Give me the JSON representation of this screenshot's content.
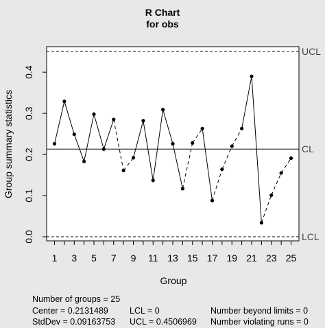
{
  "chart_data": {
    "type": "line",
    "title": "R Chart",
    "subtitle": "for obs",
    "xlabel": "Group",
    "ylabel": "Group summary statistics",
    "xlim": [
      0.2,
      25.8
    ],
    "ylim": [
      -0.01,
      0.462
    ],
    "x_ticks": [
      1,
      3,
      5,
      7,
      9,
      11,
      13,
      15,
      17,
      19,
      21,
      23,
      25
    ],
    "x_ticks_minor": [
      2,
      4,
      6,
      8,
      10,
      12,
      14,
      16,
      18,
      20,
      22,
      24
    ],
    "y_ticks": [
      0.0,
      0.1,
      0.2,
      0.3,
      0.4
    ],
    "y_tick_labels": [
      "0.0",
      "0.1",
      "0.2",
      "0.3",
      "0.4"
    ],
    "x": [
      1,
      2,
      3,
      4,
      5,
      6,
      7,
      8,
      9,
      10,
      11,
      12,
      13,
      14,
      15,
      16,
      17,
      18,
      19,
      20,
      21,
      22,
      23,
      24,
      25
    ],
    "values": [
      0.226,
      0.329,
      0.249,
      0.183,
      0.298,
      0.213,
      0.285,
      0.161,
      0.192,
      0.282,
      0.137,
      0.309,
      0.226,
      0.117,
      0.228,
      0.263,
      0.088,
      0.164,
      0.22,
      0.263,
      0.39,
      0.034,
      0.101,
      0.155,
      0.191
    ],
    "segment_styles": [
      "solid",
      "solid",
      "solid",
      "solid",
      "solid",
      "solid",
      "dashed",
      "dashed",
      "solid",
      "solid",
      "solid",
      "solid",
      "solid",
      "dashed",
      "dashed",
      "solid",
      "dashed",
      "dashed",
      "dashed",
      "solid",
      "solid",
      "dashed",
      "dashed",
      "dashed"
    ],
    "limits": [
      {
        "label": "UCL",
        "value": 0.4506969,
        "style": "dashed"
      },
      {
        "label": "CL",
        "value": 0.2131489,
        "style": "solid"
      },
      {
        "label": "LCL",
        "value": 0.0,
        "style": "dashed"
      }
    ],
    "grid": false,
    "legend": "none"
  },
  "footer": {
    "groups": "Number of groups = 25",
    "center": "Center = 0.2131489",
    "stddev": "StdDev = 0.09163753",
    "lcl": "LCL = 0",
    "ucl": "UCL = 0.4506969",
    "beyond": "Number beyond limits = 0",
    "violating": "Number violating runs = 0"
  },
  "colors": {
    "background": "#e8e8e8",
    "plot_background": "#ffffff",
    "line": "#000000",
    "limit_label": "#444444"
  }
}
